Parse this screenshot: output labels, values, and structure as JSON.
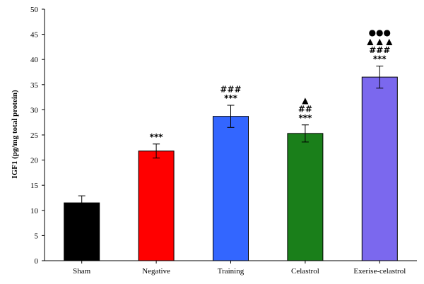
{
  "chart_data": {
    "type": "bar",
    "ylabel": "IGF1 (pg/mg total protein)",
    "ylim": [
      0,
      50
    ],
    "yticks": [
      0,
      5,
      10,
      15,
      20,
      25,
      30,
      35,
      40,
      45,
      50
    ],
    "categories": [
      "Sham",
      "Negative",
      "Training",
      "Celastrol",
      "Exerise-celastrol"
    ],
    "values": [
      11.5,
      21.8,
      28.7,
      25.3,
      36.5
    ],
    "errors": [
      1.4,
      1.4,
      2.2,
      1.7,
      2.2
    ],
    "colors": [
      "#000000",
      "#ff0000",
      "#3366ff",
      "#1a7f1a",
      "#7b68ee"
    ],
    "annotations": [
      [],
      [
        "***"
      ],
      [
        "###",
        "***"
      ],
      [
        "▲",
        "##",
        "***"
      ],
      [
        "●●●",
        "▲ ▲ ▲",
        "###",
        "***"
      ]
    ]
  }
}
